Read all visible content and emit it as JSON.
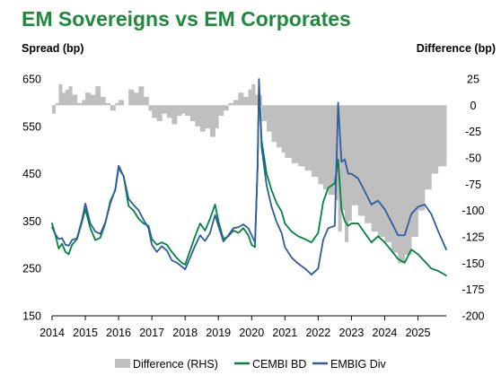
{
  "chart_data": {
    "type": "line",
    "title": "EM Sovereigns vs EM Corporates",
    "ylabel": "Spread (bp)",
    "y2label": "Difference (bp)",
    "xlabel": "",
    "ylim": [
      150,
      650
    ],
    "y_ticks": [
      "150",
      "250",
      "350",
      "450",
      "550",
      "650"
    ],
    "y2lim": [
      -200,
      25
    ],
    "y2_ticks": [
      "-200",
      "-175",
      "-150",
      "-125",
      "-100",
      "-75",
      "-50",
      "-25",
      "0",
      "25"
    ],
    "xlim": [
      2014.0,
      2025.85
    ],
    "x_ticks": [
      "2014",
      "2015",
      "2016",
      "2017",
      "2018",
      "2019",
      "2020",
      "2021",
      "2022",
      "2023",
      "2024",
      "2025"
    ],
    "grid": false,
    "legend_position": "bottom",
    "colors": {
      "difference": "#bfbfbf",
      "cembi": "#00843d",
      "embig": "#2e5c9e",
      "title": "#1f8a3c"
    },
    "series": [
      {
        "name": "Difference (RHS)",
        "type": "area",
        "axis": "right",
        "x": [
          2014.0,
          2014.1,
          2014.2,
          2014.3,
          2014.4,
          2014.5,
          2014.6,
          2014.75,
          2014.9,
          2015.0,
          2015.15,
          2015.3,
          2015.45,
          2015.6,
          2015.75,
          2015.9,
          2016.0,
          2016.15,
          2016.3,
          2016.45,
          2016.6,
          2016.75,
          2016.9,
          2017.0,
          2017.15,
          2017.3,
          2017.45,
          2017.6,
          2017.75,
          2017.9,
          2018.0,
          2018.15,
          2018.3,
          2018.45,
          2018.6,
          2018.75,
          2018.9,
          2019.0,
          2019.15,
          2019.3,
          2019.45,
          2019.6,
          2019.75,
          2019.9,
          2020.0,
          2020.1,
          2020.18,
          2020.22,
          2020.3,
          2020.45,
          2020.6,
          2020.75,
          2020.9,
          2021.0,
          2021.2,
          2021.4,
          2021.6,
          2021.8,
          2022.0,
          2022.15,
          2022.3,
          2022.5,
          2022.6,
          2022.7,
          2022.8,
          2022.9,
          2023.0,
          2023.2,
          2023.4,
          2023.6,
          2023.8,
          2024.0,
          2024.2,
          2024.4,
          2024.6,
          2024.8,
          2025.0,
          2025.2,
          2025.4,
          2025.6,
          2025.85
        ],
        "values": [
          -8,
          2,
          20,
          12,
          15,
          18,
          10,
          2,
          5,
          12,
          10,
          18,
          8,
          2,
          -5,
          2,
          5,
          0,
          15,
          12,
          18,
          8,
          -5,
          -12,
          -15,
          -8,
          -12,
          -18,
          -10,
          -8,
          -10,
          -15,
          -20,
          -25,
          -22,
          -30,
          -22,
          -10,
          -5,
          2,
          5,
          12,
          8,
          15,
          20,
          10,
          -5,
          10,
          -15,
          -25,
          -35,
          -40,
          -45,
          -50,
          -55,
          -58,
          -62,
          -68,
          -75,
          -80,
          -85,
          -90,
          -120,
          -100,
          -130,
          -110,
          -95,
          -105,
          -112,
          -120,
          -125,
          -130,
          -140,
          -150,
          -142,
          -125,
          -100,
          -80,
          -65,
          -58,
          -45
        ]
      },
      {
        "name": "CEMBI BD",
        "type": "line",
        "axis": "left",
        "x": [
          2014.0,
          2014.1,
          2014.2,
          2014.3,
          2014.4,
          2014.5,
          2014.6,
          2014.75,
          2014.9,
          2015.0,
          2015.15,
          2015.3,
          2015.45,
          2015.6,
          2015.75,
          2015.9,
          2016.0,
          2016.15,
          2016.3,
          2016.45,
          2016.6,
          2016.75,
          2016.9,
          2017.0,
          2017.15,
          2017.3,
          2017.45,
          2017.6,
          2017.75,
          2017.9,
          2018.0,
          2018.15,
          2018.3,
          2018.45,
          2018.6,
          2018.75,
          2018.9,
          2019.0,
          2019.15,
          2019.3,
          2019.45,
          2019.6,
          2019.75,
          2019.9,
          2020.0,
          2020.1,
          2020.18,
          2020.22,
          2020.3,
          2020.45,
          2020.6,
          2020.75,
          2020.9,
          2021.0,
          2021.2,
          2021.4,
          2021.6,
          2021.8,
          2022.0,
          2022.15,
          2022.3,
          2022.5,
          2022.6,
          2022.7,
          2022.8,
          2022.9,
          2023.0,
          2023.2,
          2023.4,
          2023.6,
          2023.8,
          2024.0,
          2024.2,
          2024.4,
          2024.6,
          2024.8,
          2025.0,
          2025.2,
          2025.4,
          2025.6,
          2025.85
        ],
        "values": [
          345,
          320,
          292,
          302,
          285,
          280,
          300,
          312,
          348,
          375,
          335,
          310,
          315,
          345,
          392,
          415,
          462,
          445,
          382,
          372,
          355,
          345,
          340,
          312,
          300,
          305,
          300,
          285,
          272,
          262,
          258,
          288,
          318,
          345,
          330,
          355,
          385,
          350,
          312,
          318,
          330,
          325,
          335,
          320,
          300,
          295,
          470,
          640,
          520,
          450,
          415,
          388,
          370,
          345,
          328,
          318,
          312,
          305,
          325,
          390,
          420,
          430,
          480,
          375,
          350,
          340,
          345,
          345,
          325,
          305,
          318,
          305,
          288,
          270,
          262,
          290,
          280,
          265,
          250,
          245,
          235
        ]
      },
      {
        "name": "EMBIG Div",
        "type": "line",
        "axis": "left",
        "x": [
          2014.0,
          2014.1,
          2014.2,
          2014.3,
          2014.4,
          2014.5,
          2014.6,
          2014.75,
          2014.9,
          2015.0,
          2015.15,
          2015.3,
          2015.45,
          2015.6,
          2015.75,
          2015.9,
          2016.0,
          2016.15,
          2016.3,
          2016.45,
          2016.6,
          2016.75,
          2016.9,
          2017.0,
          2017.15,
          2017.3,
          2017.45,
          2017.6,
          2017.75,
          2017.9,
          2018.0,
          2018.15,
          2018.3,
          2018.45,
          2018.6,
          2018.75,
          2018.9,
          2019.0,
          2019.15,
          2019.3,
          2019.45,
          2019.6,
          2019.75,
          2019.9,
          2020.0,
          2020.1,
          2020.18,
          2020.22,
          2020.3,
          2020.45,
          2020.6,
          2020.75,
          2020.9,
          2021.0,
          2021.2,
          2021.4,
          2021.6,
          2021.8,
          2022.0,
          2022.15,
          2022.3,
          2022.5,
          2022.6,
          2022.7,
          2022.8,
          2022.9,
          2023.0,
          2023.2,
          2023.4,
          2023.6,
          2023.8,
          2024.0,
          2024.2,
          2024.4,
          2024.6,
          2024.8,
          2025.0,
          2025.2,
          2025.4,
          2025.6,
          2025.85
        ],
        "values": [
          337,
          322,
          312,
          314,
          300,
          298,
          310,
          314,
          353,
          387,
          345,
          328,
          323,
          347,
          387,
          417,
          467,
          445,
          397,
          384,
          373,
          353,
          335,
          300,
          285,
          297,
          288,
          267,
          262,
          254,
          248,
          273,
          298,
          320,
          308,
          325,
          363,
          340,
          307,
          320,
          335,
          337,
          343,
          335,
          320,
          305,
          465,
          650,
          505,
          425,
          380,
          348,
          325,
          295,
          273,
          260,
          250,
          237,
          250,
          310,
          335,
          340,
          600,
          475,
          480,
          450,
          450,
          440,
          413,
          385,
          393,
          375,
          348,
          320,
          320,
          365,
          380,
          385,
          365,
          330,
          290
        ]
      }
    ]
  },
  "legend": {
    "items": [
      "Difference (RHS)",
      "CEMBI BD",
      "EMBIG Div"
    ]
  }
}
